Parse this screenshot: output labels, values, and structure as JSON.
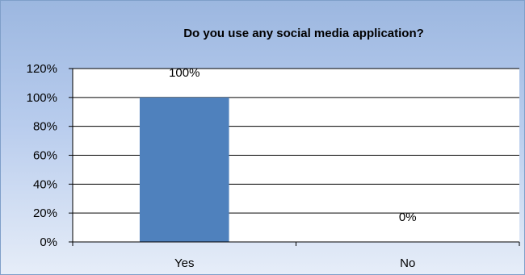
{
  "chart_data": {
    "type": "bar",
    "title": "Do you use any social media application?",
    "categories": [
      "Yes",
      "No"
    ],
    "values": [
      100,
      0
    ],
    "data_labels": [
      "100%",
      "0%"
    ],
    "ylim": [
      0,
      120
    ],
    "yticks": [
      "0%",
      "20%",
      "40%",
      "60%",
      "80%",
      "100%",
      "120%"
    ],
    "ytick_values": [
      0,
      20,
      40,
      60,
      80,
      100,
      120
    ],
    "grid": true,
    "legend": "none",
    "colors": {
      "bar": "#4f81bd",
      "grid": "#000000",
      "plot_bg": "#ffffff"
    }
  }
}
